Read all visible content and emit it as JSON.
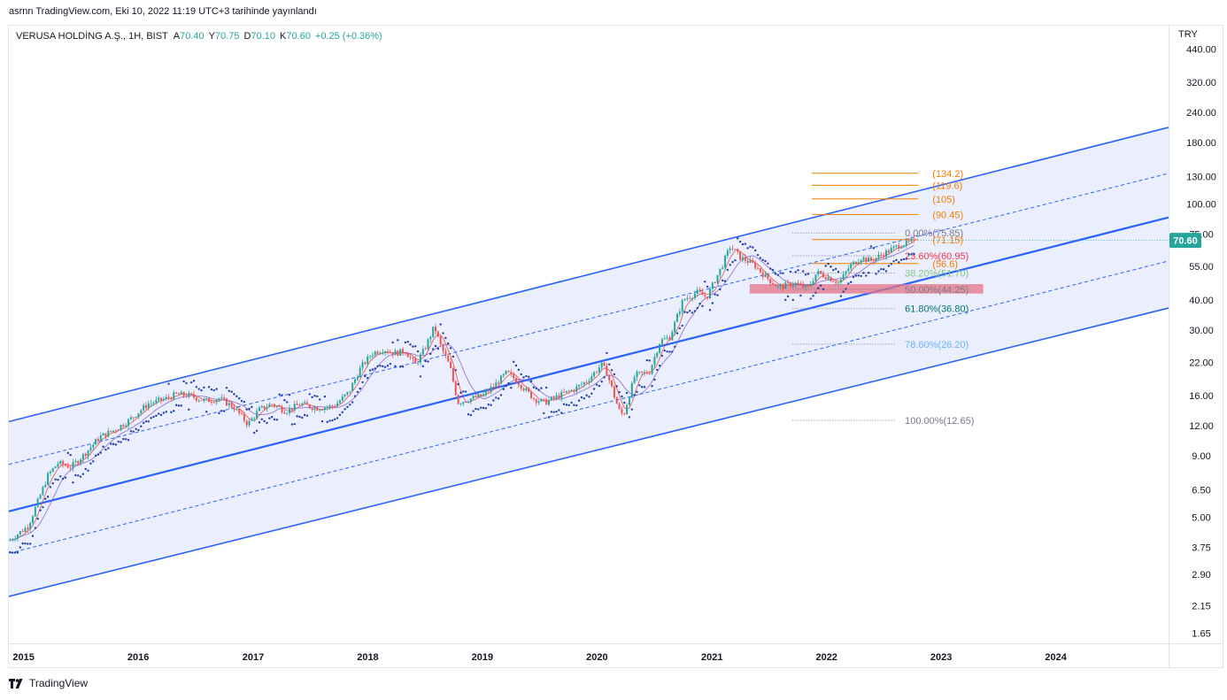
{
  "header": {
    "text": "asrnn TradingView.com, Eki 10, 2022 11:19 UTC+3 tarihinde yayınlandı"
  },
  "legend": {
    "symbol": "VERUSA HOLDİNG A.Ş., 1H, BIST",
    "open_label": "A",
    "open": "70.40",
    "high_label": "Y",
    "high": "70.75",
    "low_label": "D",
    "low": "70.10",
    "close_label": "K",
    "close": "70.60",
    "change": "+0.25 (+0.36%)"
  },
  "currency": "TRY",
  "last_price": "70.60",
  "footer": {
    "brand": "TradingView",
    "logo_icon": "tradingview-logo-icon"
  },
  "colors": {
    "up": "#26a69a",
    "down": "#ef5350",
    "channel": "#2962ff",
    "fill": "#e8ecfd",
    "psar": "#1e3fa8",
    "ext": "#f57c00",
    "zone": "#e57385",
    "badge": "#26a69a"
  },
  "chart_data": {
    "type": "candlestick",
    "scale": "log",
    "ylim": [
      1.5,
      550
    ],
    "xlim": [
      "2014-11-15",
      "2024-12-25"
    ],
    "x_ticks": [
      {
        "label": "2015",
        "date": "2015-01-01"
      },
      {
        "label": "2016",
        "date": "2016-01-01"
      },
      {
        "label": "2017",
        "date": "2017-01-01"
      },
      {
        "label": "2018",
        "date": "2018-01-01"
      },
      {
        "label": "2019",
        "date": "2019-01-01"
      },
      {
        "label": "2020",
        "date": "2020-01-01"
      },
      {
        "label": "2021",
        "date": "2021-01-01"
      },
      {
        "label": "2022",
        "date": "2022-01-01"
      },
      {
        "label": "2023",
        "date": "2023-01-01"
      },
      {
        "label": "2024",
        "date": "2024-01-01"
      }
    ],
    "y_ticks": [
      {
        "label": "440.00",
        "value": 440
      },
      {
        "label": "320.00",
        "value": 320
      },
      {
        "label": "240.00",
        "value": 240
      },
      {
        "label": "180.00",
        "value": 180
      },
      {
        "label": "130.00",
        "value": 130
      },
      {
        "label": "100.00",
        "value": 100
      },
      {
        "label": "75.00",
        "value": 75
      },
      {
        "label": "55.00",
        "value": 55
      },
      {
        "label": "40.00",
        "value": 40
      },
      {
        "label": "30.00",
        "value": 30
      },
      {
        "label": "22.00",
        "value": 22
      },
      {
        "label": "16.00",
        "value": 16
      },
      {
        "label": "12.00",
        "value": 12
      },
      {
        "label": "9.00",
        "value": 9
      },
      {
        "label": "6.50",
        "value": 6.5
      },
      {
        "label": "5.00",
        "value": 5
      },
      {
        "label": "3.75",
        "value": 3.75
      },
      {
        "label": "2.90",
        "value": 2.9
      },
      {
        "label": "2.15",
        "value": 2.15
      },
      {
        "label": "1.65",
        "value": 1.65
      }
    ],
    "price_path": [
      [
        "2014-11-15",
        4.0
      ],
      [
        "2015-01-15",
        4.6
      ],
      [
        "2015-02-15",
        5.8
      ],
      [
        "2015-03-20",
        7.5
      ],
      [
        "2015-04-20",
        8.4
      ],
      [
        "2015-06-01",
        8.1
      ],
      [
        "2015-07-15",
        9.2
      ],
      [
        "2015-09-01",
        10.8
      ],
      [
        "2015-10-15",
        11.5
      ],
      [
        "2015-12-01",
        12.6
      ],
      [
        "2016-02-01",
        14.8
      ],
      [
        "2016-04-01",
        15.6
      ],
      [
        "2016-05-01",
        16.2
      ],
      [
        "2016-06-15",
        16.0
      ],
      [
        "2016-08-01",
        15.2
      ],
      [
        "2016-09-15",
        15.6
      ],
      [
        "2016-11-01",
        14.3
      ],
      [
        "2016-12-15",
        12.2
      ],
      [
        "2017-01-20",
        14.0
      ],
      [
        "2017-03-01",
        14.8
      ],
      [
        "2017-04-15",
        13.8
      ],
      [
        "2017-06-01",
        14.8
      ],
      [
        "2017-07-20",
        14.2
      ],
      [
        "2017-09-15",
        14.5
      ],
      [
        "2017-11-01",
        16.5
      ],
      [
        "2017-12-10",
        21.0
      ],
      [
        "2018-01-15",
        24.0
      ],
      [
        "2018-02-20",
        25.0
      ],
      [
        "2018-03-25",
        24.0
      ],
      [
        "2018-05-01",
        24.5
      ],
      [
        "2018-06-01",
        21.5
      ],
      [
        "2018-07-01",
        25.0
      ],
      [
        "2018-08-01",
        31.0
      ],
      [
        "2018-08-20",
        26.0
      ],
      [
        "2018-09-20",
        21.0
      ],
      [
        "2018-10-15",
        15.0
      ],
      [
        "2018-11-20",
        15.5
      ],
      [
        "2019-01-01",
        16.0
      ],
      [
        "2019-02-15",
        18.0
      ],
      [
        "2019-03-20",
        20.0
      ],
      [
        "2019-04-20",
        18.5
      ],
      [
        "2019-06-15",
        15.5
      ],
      [
        "2019-07-20",
        15.0
      ],
      [
        "2019-09-01",
        16.0
      ],
      [
        "2019-10-20",
        17.0
      ],
      [
        "2019-12-01",
        18.5
      ],
      [
        "2020-01-15",
        21.5
      ],
      [
        "2020-02-01",
        20.0
      ],
      [
        "2020-03-10",
        14.0
      ],
      [
        "2020-03-25",
        13.2
      ],
      [
        "2020-05-01",
        19.5
      ],
      [
        "2020-06-15",
        20.0
      ],
      [
        "2020-07-20",
        27.0
      ],
      [
        "2020-08-20",
        28.0
      ],
      [
        "2020-10-01",
        40.0
      ],
      [
        "2020-11-15",
        43.0
      ],
      [
        "2020-12-15",
        41.0
      ],
      [
        "2021-02-01",
        55.0
      ],
      [
        "2021-03-01",
        67.0
      ],
      [
        "2021-04-01",
        60.0
      ],
      [
        "2021-05-15",
        56.0
      ],
      [
        "2021-06-20",
        50.0
      ],
      [
        "2021-08-01",
        45.0
      ],
      [
        "2021-09-20",
        47.0
      ],
      [
        "2021-11-01",
        44.5
      ],
      [
        "2021-12-01",
        52.0
      ],
      [
        "2022-01-01",
        50.0
      ],
      [
        "2022-02-10",
        47.0
      ],
      [
        "2022-03-15",
        55.0
      ],
      [
        "2022-04-20",
        60.0
      ],
      [
        "2022-05-20",
        58.0
      ],
      [
        "2022-06-20",
        61.0
      ],
      [
        "2022-07-20",
        64.0
      ],
      [
        "2022-08-25",
        68.0
      ],
      [
        "2022-09-20",
        69.0
      ],
      [
        "2022-10-10",
        70.6
      ]
    ],
    "channel": {
      "lines": [
        {
          "name": "upper",
          "style": "solid",
          "p1": [
            "2014-11-15",
            12.5
          ],
          "p2": [
            "2024-12-25",
            208
          ]
        },
        {
          "name": "inner-upper",
          "style": "dashed",
          "p1": [
            "2014-11-15",
            8.3
          ],
          "p2": [
            "2024-12-25",
            134
          ]
        },
        {
          "name": "mid",
          "style": "solid-bold",
          "p1": [
            "2014-11-15",
            5.3
          ],
          "p2": [
            "2024-12-25",
            88
          ]
        },
        {
          "name": "inner-lower",
          "style": "dashed",
          "p1": [
            "2014-11-15",
            3.55
          ],
          "p2": [
            "2024-12-25",
            58
          ]
        },
        {
          "name": "lower",
          "style": "solid",
          "p1": [
            "2014-11-15",
            2.35
          ],
          "p2": [
            "2024-12-25",
            37
          ]
        }
      ]
    },
    "fibonacci": {
      "x_start": "2021-09-15",
      "x_end": "2022-08-10",
      "levels": [
        {
          "label": "0.00%(75.85)",
          "value": 75.85,
          "color": "#787b86"
        },
        {
          "label": "23.60%(60.95)",
          "value": 60.95,
          "color": "#f23645"
        },
        {
          "label": "38.20%(51.70)",
          "value": 51.7,
          "color": "#81c784"
        },
        {
          "label": "50.00%(44.25)",
          "value": 44.25,
          "color": "#787b86"
        },
        {
          "label": "61.80%(36.80)",
          "value": 36.8,
          "color": "#00796b"
        },
        {
          "label": "78.60%(26.20)",
          "value": 26.2,
          "color": "#64b5f6"
        },
        {
          "label": "100.00%(12.65)",
          "value": 12.65,
          "color": "#787b86"
        }
      ]
    },
    "extensions": {
      "x_start": "2021-11-15",
      "x_end": "2022-10-20",
      "levels": [
        {
          "label": "(134.2)",
          "value": 134.2
        },
        {
          "label": "(119.6)",
          "value": 119.6
        },
        {
          "label": "(105)",
          "value": 105
        },
        {
          "label": "(90.45)",
          "value": 90.45
        },
        {
          "label": "(71.15)",
          "value": 71.15
        },
        {
          "label": "(56.6)",
          "value": 56.6
        }
      ]
    },
    "zone": {
      "x_start": "2021-05-01",
      "x_end": "2023-05-15",
      "top": 46.5,
      "bottom": 42.5
    },
    "current_price": 70.6
  }
}
